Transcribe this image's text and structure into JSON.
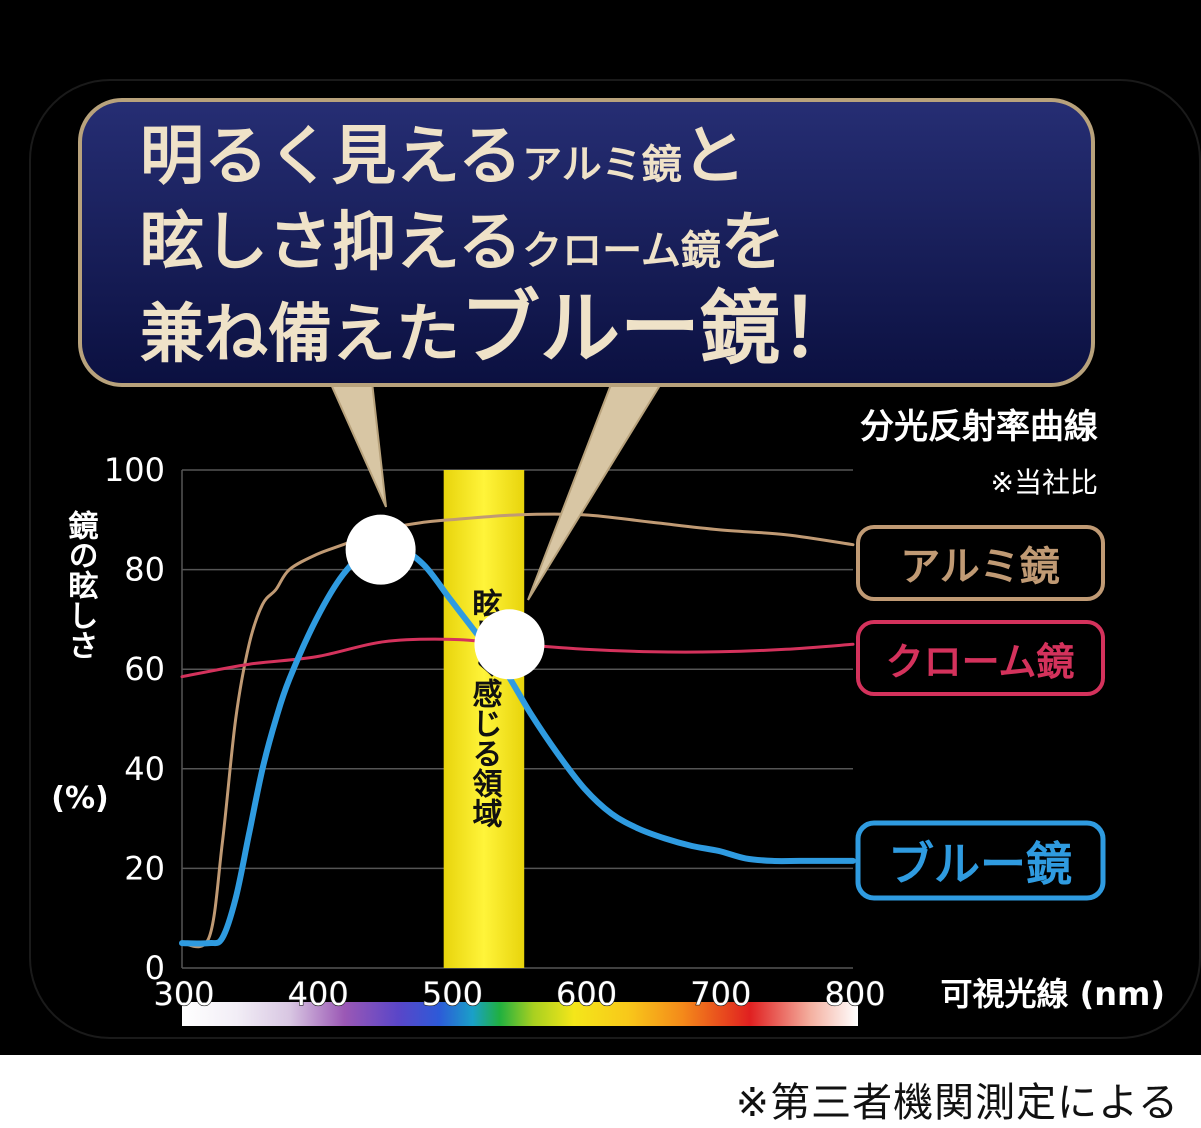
{
  "headline": {
    "line1": {
      "big1": "明るく見える",
      "small": "アルミ鏡",
      "big2": "と"
    },
    "line2": {
      "big1": "眩しさ抑える",
      "small": "クローム鏡",
      "big2": "を"
    },
    "line3": {
      "big1": "兼ね備えた",
      "big2": "ブルー鏡！"
    }
  },
  "subtitle": "分光反射率曲線",
  "comparison_note": "※当社比",
  "glare_zone_label": "眩しく感じる領域",
  "footnote": "※第三者機関測定による",
  "colors": {
    "background": "#000000",
    "banner_fill": "#141a52",
    "banner_border": "#b8a27c",
    "headline_text": "#efe2c8",
    "aluminum": "#c09a74",
    "chrome": "#d4325c",
    "blue": "#2f9be0",
    "glare_zone": "#f5ea12",
    "grid": "#555555",
    "axis_text": "#ffffff"
  },
  "chart_data": {
    "type": "line",
    "title": "分光反射率曲線",
    "xlabel": "可視光線 (nm)",
    "ylabel": "鏡の眩しさ(%)",
    "xlim": [
      300,
      800
    ],
    "ylim": [
      0,
      100
    ],
    "x_ticks": [
      300,
      400,
      500,
      600,
      700,
      800
    ],
    "y_ticks": [
      0,
      20,
      40,
      60,
      80,
      100
    ],
    "grid": true,
    "legend_placement": "right",
    "highlight_band": {
      "x_start": 495,
      "x_end": 555,
      "label": "眩しく感じる領域"
    },
    "markers": [
      {
        "x": 448,
        "y": 84,
        "series": "aluminum"
      },
      {
        "x": 544,
        "y": 65,
        "series": "blue"
      }
    ],
    "series": [
      {
        "id": "aluminum",
        "name": "アルミ鏡",
        "x": [
          300,
          320,
          330,
          340,
          350,
          360,
          370,
          380,
          400,
          420,
          450,
          480,
          500,
          550,
          600,
          650,
          700,
          750,
          800
        ],
        "y": [
          5,
          6,
          25,
          50,
          65,
          73,
          76,
          80,
          83,
          85,
          88,
          89.5,
          90,
          91,
          91,
          89.5,
          88,
          87,
          85
        ]
      },
      {
        "id": "chrome",
        "name": "クローム鏡",
        "x": [
          300,
          350,
          400,
          450,
          500,
          550,
          600,
          650,
          700,
          750,
          800
        ],
        "y": [
          58.5,
          61,
          62.5,
          65.5,
          66,
          65,
          64,
          63.5,
          63.5,
          64,
          65
        ]
      },
      {
        "id": "blue",
        "name": "ブルー鏡",
        "x": [
          300,
          320,
          330,
          340,
          350,
          360,
          370,
          380,
          400,
          420,
          440,
          460,
          480,
          500,
          520,
          540,
          560,
          580,
          600,
          620,
          640,
          660,
          680,
          700,
          720,
          740,
          760,
          780,
          800
        ],
        "y": [
          5,
          5,
          6,
          14,
          27,
          40,
          50,
          58,
          70,
          79,
          84,
          84.5,
          81,
          74,
          67,
          60,
          51,
          43,
          36,
          31,
          28,
          26,
          24.5,
          23.5,
          22,
          21.5,
          21.5,
          21.5,
          21.5
        ]
      }
    ]
  }
}
